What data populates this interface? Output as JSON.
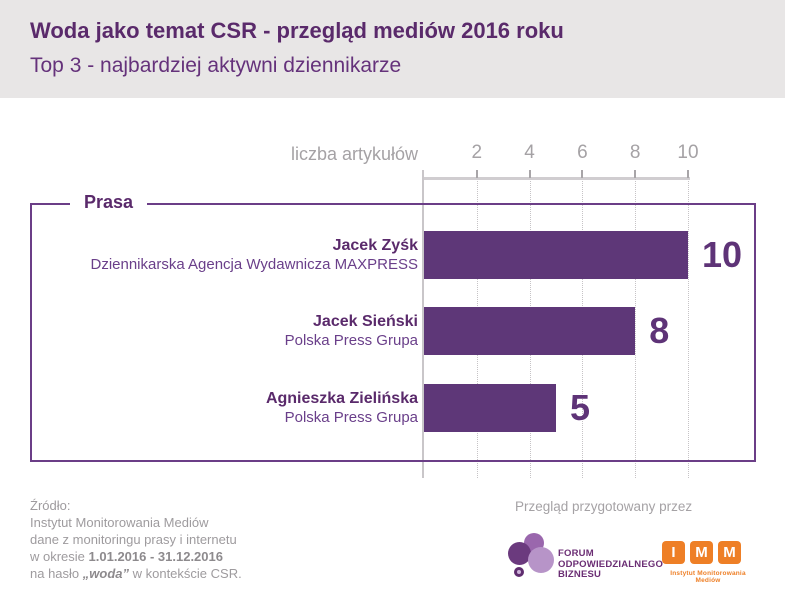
{
  "header": {
    "title": "Woda jako temat CSR - przegląd mediów 2016 roku",
    "subtitle": "Top 3 - najbardziej aktywni dziennikarze"
  },
  "chart_data": {
    "type": "bar",
    "orientation": "horizontal",
    "title": "Prasa",
    "axis_label": "liczba artykułów",
    "x_ticks": [
      "2",
      "4",
      "6",
      "8",
      "10"
    ],
    "xlim": [
      0,
      10
    ],
    "grid": "dotted-vertical",
    "categories": [
      "Jacek Zyśk",
      "Jacek Sieński",
      "Agnieszka Zielińska"
    ],
    "org_labels": [
      "Dziennikarska Agencja Wydawnicza MAXPRESS",
      "Polska Press Grupa",
      "Polska Press Grupa"
    ],
    "values": [
      10,
      8,
      5
    ],
    "bar_color": "#5e3778"
  },
  "footer": {
    "source": {
      "line1": "Źródło:",
      "line2": "Instytut Monitorowania Mediów",
      "line3": "dane z monitoringu prasy i internetu",
      "line4_prefix": "w okresie ",
      "line4_bold": "1.01.2016 - 31.12.2016",
      "line5_prefix": "na hasło ",
      "line5_bold": "„woda”",
      "line5_suffix": " w kontekście CSR."
    },
    "credit": {
      "caption": "Przegląd przygotowany przez",
      "fob_logo_lines": [
        "FORUM",
        "ODPOWIEDZIALNEGO",
        "BIZNESU"
      ],
      "imm_letters": [
        "I",
        "M",
        "M"
      ],
      "imm_caption": "Instytut Monitorowania Mediów"
    }
  },
  "colors": {
    "accent_purple": "#5e3778",
    "title_purple": "#5a2a6b",
    "frame_purple": "#6b3e87",
    "gray_text": "#a5a2a5",
    "imm_orange": "#ee7f26",
    "header_bg": "#e8e6e6"
  }
}
